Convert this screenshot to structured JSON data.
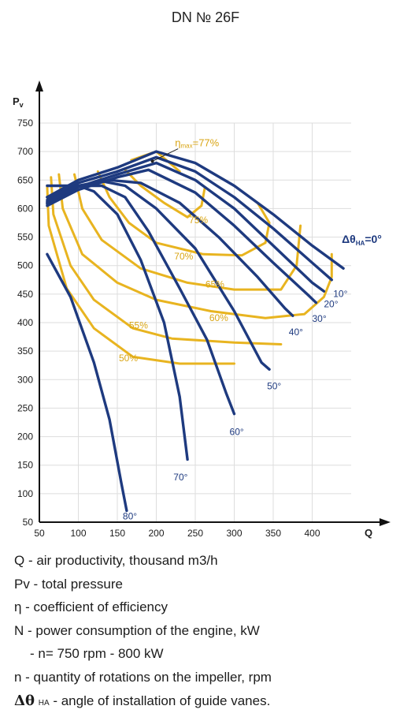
{
  "chart_data": {
    "type": "line",
    "title": "DN № 26F",
    "xlabel": "Q",
    "ylabel": "Pv",
    "xlim": [
      50,
      450
    ],
    "ylim": [
      50,
      750
    ],
    "x_ticks": [
      50,
      100,
      150,
      200,
      250,
      300,
      350,
      400
    ],
    "y_ticks": [
      50,
      100,
      150,
      200,
      250,
      300,
      350,
      400,
      450,
      500,
      550,
      600,
      650,
      700,
      750
    ],
    "grid": true,
    "pressure_curves": [
      {
        "label": "ΔθHA=0°",
        "color": "#1e3a7f",
        "points": [
          [
            60,
            620
          ],
          [
            100,
            650
          ],
          [
            150,
            672
          ],
          [
            200,
            700
          ],
          [
            250,
            680
          ],
          [
            300,
            640
          ],
          [
            350,
            590
          ],
          [
            400,
            535
          ],
          [
            440,
            495
          ]
        ]
      },
      {
        "label": "10°",
        "color": "#1e3a7f",
        "points": [
          [
            60,
            615
          ],
          [
            100,
            645
          ],
          [
            150,
            665
          ],
          [
            200,
            690
          ],
          [
            250,
            665
          ],
          [
            300,
            620
          ],
          [
            350,
            565
          ],
          [
            400,
            505
          ],
          [
            425,
            475
          ]
        ]
      },
      {
        "label": "20°",
        "color": "#1e3a7f",
        "points": [
          [
            60,
            608
          ],
          [
            100,
            638
          ],
          [
            150,
            660
          ],
          [
            200,
            680
          ],
          [
            250,
            650
          ],
          [
            300,
            600
          ],
          [
            350,
            535
          ],
          [
            400,
            470
          ],
          [
            415,
            455
          ]
        ]
      },
      {
        "label": "30°",
        "color": "#1e3a7f",
        "points": [
          [
            60,
            605
          ],
          [
            100,
            633
          ],
          [
            150,
            655
          ],
          [
            190,
            668
          ],
          [
            250,
            628
          ],
          [
            300,
            570
          ],
          [
            350,
            505
          ],
          [
            395,
            448
          ],
          [
            405,
            435
          ]
        ]
      },
      {
        "label": "40°",
        "color": "#1e3a7f",
        "points": [
          [
            60,
            610
          ],
          [
            100,
            640
          ],
          [
            140,
            650
          ],
          [
            180,
            645
          ],
          [
            230,
            610
          ],
          [
            280,
            550
          ],
          [
            330,
            480
          ],
          [
            365,
            425
          ],
          [
            375,
            412
          ]
        ]
      },
      {
        "label": "50°",
        "color": "#1e3a7f",
        "points": [
          [
            60,
            612
          ],
          [
            100,
            640
          ],
          [
            130,
            648
          ],
          [
            160,
            640
          ],
          [
            200,
            600
          ],
          [
            250,
            530
          ],
          [
            300,
            420
          ],
          [
            335,
            330
          ],
          [
            345,
            318
          ]
        ]
      },
      {
        "label": "60°",
        "color": "#1e3a7f",
        "points": [
          [
            60,
            620
          ],
          [
            100,
            640
          ],
          [
            130,
            640
          ],
          [
            160,
            620
          ],
          [
            190,
            560
          ],
          [
            230,
            460
          ],
          [
            265,
            370
          ],
          [
            290,
            275
          ],
          [
            300,
            240
          ]
        ]
      },
      {
        "label": "70°",
        "color": "#1e3a7f",
        "points": [
          [
            60,
            640
          ],
          [
            100,
            640
          ],
          [
            120,
            630
          ],
          [
            150,
            590
          ],
          [
            180,
            510
          ],
          [
            210,
            400
          ],
          [
            230,
            270
          ],
          [
            240,
            160
          ]
        ]
      },
      {
        "label": "80°",
        "color": "#1e3a7f",
        "points": [
          [
            60,
            520
          ],
          [
            90,
            445
          ],
          [
            120,
            330
          ],
          [
            140,
            230
          ],
          [
            155,
            120
          ],
          [
            162,
            70
          ]
        ]
      }
    ],
    "efficiency_curves": [
      {
        "label": "ηmax=77%",
        "color": "#e8b420",
        "points": [
          [
            168,
            685
          ],
          [
            200,
            700
          ],
          [
            230,
            665
          ]
        ]
      },
      {
        "label": "75%",
        "color": "#e8b420",
        "points": [
          [
            160,
            668
          ],
          [
            180,
            640
          ],
          [
            210,
            610
          ],
          [
            240,
            585
          ],
          [
            258,
            605
          ],
          [
            262,
            635
          ]
        ]
      },
      {
        "label": "70%",
        "color": "#e8b420",
        "points": [
          [
            125,
            665
          ],
          [
            140,
            620
          ],
          [
            165,
            575
          ],
          [
            200,
            540
          ],
          [
            260,
            520
          ],
          [
            310,
            518
          ],
          [
            340,
            540
          ],
          [
            345,
            575
          ],
          [
            330,
            610
          ]
        ]
      },
      {
        "label": "65%",
        "color": "#e8b420",
        "points": [
          [
            95,
            660
          ],
          [
            105,
            600
          ],
          [
            130,
            545
          ],
          [
            180,
            495
          ],
          [
            240,
            470
          ],
          [
            300,
            458
          ],
          [
            360,
            458
          ],
          [
            380,
            500
          ],
          [
            385,
            570
          ]
        ]
      },
      {
        "label": "60%",
        "color": "#e8b420",
        "points": [
          [
            75,
            660
          ],
          [
            80,
            600
          ],
          [
            105,
            520
          ],
          [
            150,
            470
          ],
          [
            200,
            440
          ],
          [
            270,
            420
          ],
          [
            340,
            408
          ],
          [
            390,
            415
          ],
          [
            415,
            445
          ],
          [
            425,
            480
          ],
          [
            425,
            520
          ]
        ]
      },
      {
        "label": "55%",
        "color": "#e8b420",
        "points": [
          [
            65,
            655
          ],
          [
            68,
            590
          ],
          [
            90,
            500
          ],
          [
            120,
            440
          ],
          [
            170,
            390
          ],
          [
            220,
            372
          ],
          [
            300,
            365
          ],
          [
            360,
            362
          ]
        ]
      },
      {
        "label": "50%",
        "color": "#e8b420",
        "points": [
          [
            60,
            640
          ],
          [
            62,
            570
          ],
          [
            85,
            460
          ],
          [
            120,
            390
          ],
          [
            170,
            340
          ],
          [
            230,
            328
          ],
          [
            300,
            328
          ]
        ]
      }
    ],
    "annotations": [
      "ηmax=77%",
      "75%",
      "70%",
      "65%",
      "60%",
      "55%",
      "50%",
      "10°",
      "20°",
      "30°",
      "40°",
      "50°",
      "60°",
      "70°",
      "80°",
      "ΔθHA=0°"
    ]
  },
  "legend": {
    "q": "Q - air productivity, thousand m3/h",
    "pv": "Pv - total pressure",
    "eta": "η - coefficient of efficiency",
    "n": "N - power consumption of the engine, kW",
    "n_detail": "- n= 750 rpm - 800 kW",
    "rot": "n - quantity of rotations on the impeller, rpm",
    "dtheta_symbol": "Δθ",
    "dtheta_sub": "HA",
    "dtheta_text": " - angle of installation of guide vanes."
  }
}
